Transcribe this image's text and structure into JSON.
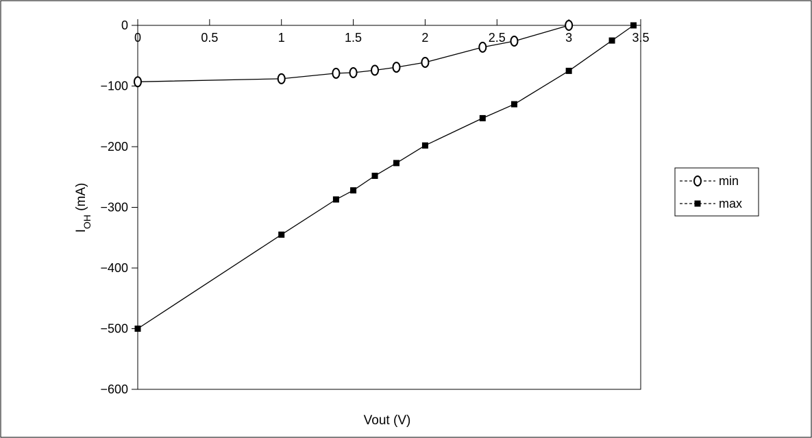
{
  "chart_data": {
    "type": "line",
    "title": "",
    "xlabel": "Vout (V)",
    "ylabel": {
      "main": "I",
      "sub": "OH",
      "rest": " (mA)"
    },
    "xlim": [
      0,
      3.5
    ],
    "ylim": [
      -600,
      0
    ],
    "x_ticks": [
      0,
      0.5,
      1,
      1.5,
      2,
      2.5,
      3,
      3.5
    ],
    "x_tick_labels": [
      "0",
      "0.5",
      "1",
      "1.5",
      "2",
      "2.5",
      "3",
      "3.5"
    ],
    "y_ticks": [
      0,
      -100,
      -200,
      -300,
      -400,
      -500,
      -600
    ],
    "y_tick_labels": [
      "0",
      "−100",
      "−200",
      "−300",
      "−400",
      "−500",
      "−600"
    ],
    "grid": false,
    "legend_position": "right",
    "series": [
      {
        "name": "min",
        "marker": "open-ellipse",
        "x": [
          0,
          1,
          1.38,
          1.5,
          1.65,
          1.8,
          2.0,
          2.4,
          2.62,
          3.0
        ],
        "y": [
          -93,
          -88,
          -79,
          -78,
          -74,
          -69,
          -61,
          -36,
          -26,
          0
        ]
      },
      {
        "name": "max",
        "marker": "filled-square",
        "x": [
          0,
          1,
          1.38,
          1.5,
          1.65,
          1.8,
          2.0,
          2.4,
          2.62,
          3.0,
          3.3,
          3.45
        ],
        "y": [
          -500,
          -345,
          -287,
          -272,
          -248,
          -227,
          -198,
          -153,
          -130,
          -75,
          -25,
          0
        ]
      }
    ]
  }
}
